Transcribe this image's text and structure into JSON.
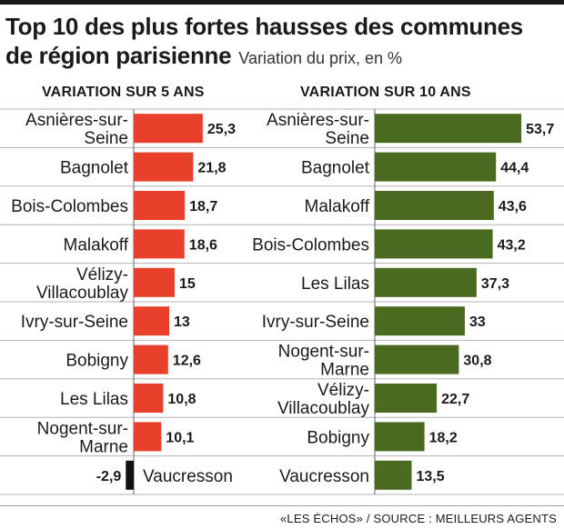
{
  "header": {
    "title_line1": "Top 10 des plus fortes hausses des communes",
    "title_line2": "de région parisienne",
    "subtitle": "Variation du prix, en %"
  },
  "footer": {
    "source": "«LES ÉCHOS» / SOURCE : MEILLEURS AGENTS"
  },
  "colors": {
    "five_year": "#e8402a",
    "ten_year": "#4a6b1f",
    "negative": "#111111"
  },
  "chart_data": [
    {
      "type": "bar",
      "orientation": "horizontal",
      "title": "VARIATION SUR 5 ANS",
      "categories": [
        [
          "Asnières-sur-",
          "Seine"
        ],
        [
          "Bagnolet"
        ],
        [
          "Bois-Colombes"
        ],
        [
          "Malakoff"
        ],
        [
          "Vélizy-",
          "Villacoublay"
        ],
        [
          "Ivry-sur-Seine"
        ],
        [
          "Bobigny"
        ],
        [
          "Les Lilas"
        ],
        [
          "Nogent-sur-",
          "Marne"
        ],
        [
          "Vaucresson"
        ]
      ],
      "values": [
        25.3,
        21.8,
        18.7,
        18.6,
        15,
        13,
        12.6,
        10.8,
        10.1,
        -2.9
      ],
      "value_labels": [
        "25,3",
        "21,8",
        "18,7",
        "18,6",
        "15",
        "13",
        "12,6",
        "10,8",
        "10,1",
        "-2,9"
      ]
    },
    {
      "type": "bar",
      "orientation": "horizontal",
      "title": "VARIATION SUR 10 ANS",
      "categories": [
        [
          "Asnières-sur-",
          "Seine"
        ],
        [
          "Bagnolet"
        ],
        [
          "Malakoff"
        ],
        [
          "Bois-Colombes"
        ],
        [
          "Les Lilas"
        ],
        [
          "Ivry-sur-Seine"
        ],
        [
          "Nogent-sur-",
          "Marne"
        ],
        [
          "Vélizy-",
          "Villacoublay"
        ],
        [
          "Bobigny"
        ],
        [
          "Vaucresson"
        ]
      ],
      "values": [
        53.7,
        44.4,
        43.6,
        43.2,
        37.3,
        33,
        30.8,
        22.7,
        18.2,
        13.5
      ],
      "value_labels": [
        "53,7",
        "44,4",
        "43,6",
        "43,2",
        "37,3",
        "33",
        "30,8",
        "22,7",
        "18,2",
        "13,5"
      ]
    }
  ]
}
